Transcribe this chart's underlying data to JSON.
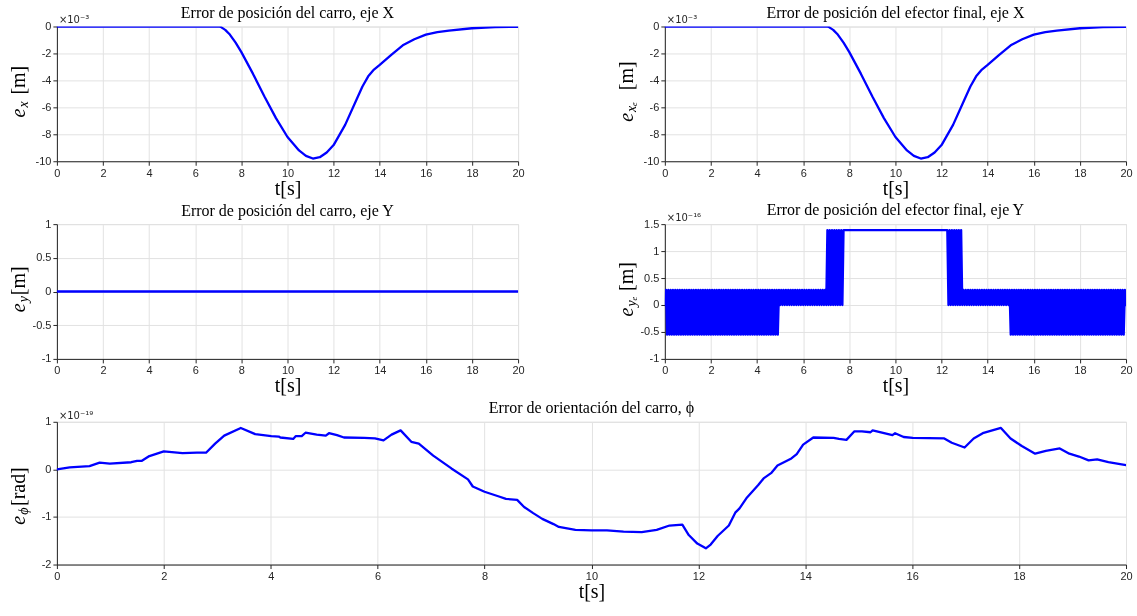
{
  "chart_data": [
    {
      "type": "line",
      "title": "Error de posición del carro, eje X",
      "xlabel": "t[s]",
      "ylabel": "e$_{x}$ [m]",
      "xlim": [
        0,
        20
      ],
      "ylim": [
        -10,
        0
      ],
      "xticks": [
        0,
        2,
        4,
        6,
        8,
        10,
        12,
        14,
        16,
        18,
        20
      ],
      "yticks": [
        -10,
        -8,
        -6,
        -4,
        -2,
        0
      ],
      "grid": true,
      "annotations": [
        "×10⁻³"
      ],
      "series": [
        {
          "color": "#0000ff",
          "x": [
            0,
            7,
            7.1,
            7.3,
            7.5,
            7.75,
            8,
            8.5,
            9,
            9.5,
            10,
            10.5,
            10.8,
            11.1,
            11.4,
            11.7,
            12,
            12.5,
            13,
            13.25,
            13.5,
            13.75,
            14,
            14.5,
            15,
            15.5,
            16,
            16.5,
            17,
            18,
            19,
            20
          ],
          "values": [
            0,
            0,
            -0.03,
            -0.25,
            -0.6,
            -1.2,
            -1.9,
            -3.5,
            -5.2,
            -6.8,
            -8.2,
            -9.2,
            -9.6,
            -9.8,
            -9.7,
            -9.35,
            -8.8,
            -7.3,
            -5.4,
            -4.45,
            -3.7,
            -3.2,
            -2.85,
            -2.1,
            -1.4,
            -0.95,
            -0.6,
            -0.42,
            -0.3,
            -0.13,
            -0.05,
            -0.02
          ]
        }
      ]
    },
    {
      "type": "line",
      "title": "Error de posición del efector final, eje X",
      "xlabel": "t[s]",
      "ylabel": "e$_{xₑ}$ [m]",
      "xlim": [
        0,
        20
      ],
      "ylim": [
        -10,
        0
      ],
      "xticks": [
        0,
        2,
        4,
        6,
        8,
        10,
        12,
        14,
        16,
        18,
        20
      ],
      "yticks": [
        -10,
        -8,
        -6,
        -4,
        -2,
        0
      ],
      "grid": true,
      "annotations": [
        "×10⁻³"
      ],
      "series": [
        {
          "color": "#0000ff",
          "x": [
            0,
            7,
            7.1,
            7.3,
            7.5,
            7.75,
            8,
            8.5,
            9,
            9.5,
            10,
            10.5,
            10.8,
            11.1,
            11.4,
            11.7,
            12,
            12.5,
            13,
            13.25,
            13.5,
            13.75,
            14,
            14.5,
            15,
            15.5,
            16,
            16.5,
            17,
            18,
            19,
            20
          ],
          "values": [
            0,
            0,
            -0.03,
            -0.25,
            -0.6,
            -1.2,
            -1.9,
            -3.5,
            -5.2,
            -6.8,
            -8.2,
            -9.2,
            -9.6,
            -9.8,
            -9.7,
            -9.35,
            -8.8,
            -7.3,
            -5.4,
            -4.45,
            -3.7,
            -3.2,
            -2.85,
            -2.1,
            -1.4,
            -0.95,
            -0.6,
            -0.42,
            -0.3,
            -0.13,
            -0.05,
            -0.02
          ]
        }
      ]
    },
    {
      "type": "line",
      "title": "Error de posición del carro, eje Y",
      "xlabel": "t[s]",
      "ylabel": "e$_{y}$[m]",
      "xlim": [
        0,
        20
      ],
      "ylim": [
        -1,
        1
      ],
      "xticks": [
        0,
        2,
        4,
        6,
        8,
        10,
        12,
        14,
        16,
        18,
        20
      ],
      "yticks": [
        -1,
        -0.5,
        0,
        0.5,
        1
      ],
      "grid": true,
      "series": [
        {
          "color": "#0000ff",
          "x": [
            0,
            20
          ],
          "values": [
            0,
            0
          ]
        }
      ]
    },
    {
      "type": "line",
      "title": "Error de posición del efector final, eje Y",
      "xlabel": "t[s]",
      "ylabel": "e$_{yₑ}$[m]",
      "xlim": [
        0,
        20
      ],
      "ylim": [
        -1,
        1.5
      ],
      "xticks": [
        0,
        2,
        4,
        6,
        8,
        10,
        12,
        14,
        16,
        18,
        20
      ],
      "yticks": [
        -1,
        -0.5,
        0,
        0.5,
        1,
        1.5
      ],
      "grid": true,
      "annotations": [
        "×10⁻¹⁶"
      ],
      "series": [
        {
          "color": "#0000ff",
          "x": [
            0,
            0.05,
            0.1,
            0.15,
            0.2,
            0.25,
            0.3,
            0.35,
            0.4,
            0.45,
            0.5,
            0.55,
            0.6,
            0.65,
            0.7,
            0.75,
            0.8,
            0.85,
            0.9,
            0.95,
            1,
            1.05,
            1.1,
            1.15,
            1.2,
            1.25,
            1.3,
            1.35,
            1.4,
            1.45,
            1.5,
            1.55,
            1.6,
            1.65,
            1.7,
            1.75,
            1.8,
            1.85,
            1.9,
            1.95,
            2,
            2.05,
            2.1,
            2.15,
            2.2,
            2.25,
            2.3,
            2.35,
            2.4,
            2.45,
            2.5,
            2.55,
            2.6,
            2.65,
            2.7,
            2.75,
            2.8,
            2.85,
            2.9,
            2.95,
            3,
            3.05,
            3.1,
            3.15,
            3.2,
            3.25,
            3.3,
            3.35,
            3.4,
            3.45,
            3.5,
            3.55,
            3.6,
            3.65,
            3.7,
            3.75,
            3.8,
            3.85,
            3.9,
            3.95,
            4,
            4.05,
            4.1,
            4.15,
            4.2,
            4.25,
            4.3,
            4.35,
            4.4,
            4.45,
            4.5,
            4.55,
            4.6,
            4.65,
            4.7,
            4.75,
            4.8,
            4.85,
            4.9,
            4.95,
            5,
            5.05,
            5.1,
            5.15,
            5.2,
            5.25,
            5.3,
            5.35,
            5.4,
            5.45,
            5.5,
            5.55,
            5.6,
            5.65,
            5.7,
            5.75,
            5.8,
            5.85,
            5.9,
            5.95,
            6,
            6.05,
            6.1,
            6.15,
            6.2,
            6.25,
            6.3,
            6.35,
            6.4,
            6.45,
            6.5,
            6.55,
            6.6,
            6.65,
            6.7,
            6.75,
            6.8,
            6.85,
            6.9,
            6.95,
            7,
            7.05,
            7.1,
            7.15,
            7.2,
            7.25,
            7.3,
            7.35,
            7.4,
            7.45,
            7.5,
            7.55,
            7.6,
            7.65,
            7.7,
            7.75,
            12.25,
            12.3,
            12.35,
            12.4,
            12.45,
            12.5,
            12.55,
            12.6,
            12.65,
            12.7,
            12.75,
            12.8,
            12.85,
            12.9,
            12.95,
            13,
            13.05,
            13.1,
            13.15,
            13.2,
            13.25,
            13.3,
            13.35,
            13.4,
            13.45,
            13.5,
            13.55,
            13.6,
            13.65,
            13.7,
            13.75,
            13.8,
            13.85,
            13.9,
            13.95,
            14,
            14.05,
            14.1,
            14.15,
            14.2,
            14.25,
            14.3,
            14.35,
            14.4,
            14.45,
            14.5,
            14.55,
            14.6,
            14.65,
            14.7,
            14.75,
            14.8,
            14.85,
            14.9,
            14.95,
            15,
            15.05,
            15.1,
            15.15,
            15.2,
            15.25,
            15.3,
            15.35,
            15.4,
            15.45,
            15.5,
            15.55,
            15.6,
            15.65,
            15.7,
            15.75,
            15.8,
            15.85,
            15.9,
            15.95,
            16,
            16.05,
            16.1,
            16.15,
            16.2,
            16.25,
            16.3,
            16.35,
            16.4,
            16.45,
            16.5,
            16.55,
            16.6,
            16.65,
            16.7,
            16.75,
            16.8,
            16.85,
            16.9,
            16.95,
            17,
            17.05,
            17.1,
            17.15,
            17.2,
            17.25,
            17.3,
            17.35,
            17.4,
            17.45,
            17.5,
            17.55,
            17.6,
            17.65,
            17.7,
            17.75,
            17.8,
            17.85,
            17.9,
            17.95,
            18,
            18.05,
            18.1,
            18.15,
            18.2,
            18.25,
            18.3,
            18.35,
            18.4,
            18.45,
            18.5,
            18.55,
            18.6,
            18.65,
            18.7,
            18.75,
            18.8,
            18.85,
            18.9,
            18.95,
            19,
            19.05,
            19.1,
            19.15,
            19.2,
            19.25,
            19.3,
            19.35,
            19.4,
            19.45,
            19.5,
            19.55,
            19.6,
            19.65,
            19.7,
            19.75,
            19.8,
            19.85,
            19.9,
            19.95,
            20
          ],
          "values": [
            0,
            0.28,
            -0.55,
            0.28,
            -0.55,
            0.28,
            -0.55,
            0.28,
            -0.55,
            0.28,
            -0.55,
            0.28,
            -0.55,
            0.28,
            -0.55,
            0.28,
            -0.55,
            0.28,
            -0.55,
            0.28,
            -0.55,
            0.28,
            -0.55,
            0.28,
            -0.55,
            0.28,
            -0.55,
            0.28,
            -0.55,
            0.28,
            -0.55,
            0.28,
            -0.55,
            0.28,
            -0.55,
            0.28,
            -0.55,
            0.28,
            -0.55,
            0.28,
            -0.55,
            0.28,
            -0.55,
            0.28,
            -0.55,
            0.28,
            -0.55,
            0.28,
            -0.55,
            0.28,
            -0.55,
            0.28,
            -0.55,
            0.28,
            -0.55,
            0.28,
            -0.55,
            0.28,
            -0.55,
            0.28,
            -0.55,
            0.28,
            -0.55,
            0.28,
            -0.55,
            0.28,
            -0.55,
            0.28,
            -0.55,
            0.28,
            -0.55,
            0.28,
            -0.55,
            0.28,
            -0.55,
            0.28,
            -0.55,
            0.28,
            -0.55,
            0.28,
            -0.55,
            0.28,
            -0.55,
            0.28,
            -0.55,
            0.28,
            -0.55,
            0.28,
            -0.55,
            0.28,
            -0.55,
            0.28,
            -0.55,
            0.28,
            -0.55,
            0.28,
            -0.55,
            0.28,
            -0.55,
            0.28,
            0,
            0.28,
            0,
            0.28,
            0,
            0.28,
            0,
            0.28,
            0,
            0.28,
            0,
            0.28,
            0,
            0.28,
            0,
            0.28,
            0,
            0.28,
            0,
            0.28,
            0,
            0.28,
            0,
            0.28,
            0,
            0.28,
            0,
            0.28,
            0,
            0.28,
            0,
            0.28,
            0,
            0.28,
            0,
            0.28,
            0,
            0.28,
            0,
            0.28,
            0,
            1.39,
            0,
            1.39,
            0,
            1.39,
            0,
            1.39,
            0,
            1.39,
            0,
            1.39,
            0,
            1.39,
            0,
            1.39,
            1.39,
            0,
            1.39,
            0,
            1.39,
            0,
            1.39,
            0,
            1.39,
            0,
            1.39,
            0,
            1.39,
            0,
            0.28,
            0,
            0.28,
            0,
            0.28,
            0,
            0.28,
            0,
            0.28,
            0,
            0.28,
            0,
            0.28,
            0,
            0.28,
            0,
            0.28,
            0,
            0.28,
            0,
            0.28,
            0,
            0.28,
            0,
            0.28,
            0,
            0.28,
            0,
            0.28,
            0,
            0.28,
            0,
            0.28,
            0,
            0.28,
            0,
            0.28,
            0,
            0.28,
            0,
            0.28,
            -0.55,
            0.28,
            -0.55,
            0.28,
            -0.55,
            0.28,
            -0.55,
            0.28,
            -0.55,
            0.28,
            -0.55,
            0.28,
            -0.55,
            0.28,
            -0.55,
            0.28,
            -0.55,
            0.28,
            -0.55,
            0.28,
            -0.55,
            0.28,
            -0.55,
            0.28,
            -0.55,
            0.28,
            -0.55,
            0.28,
            -0.55,
            0.28,
            -0.55,
            0.28,
            -0.55,
            0.28,
            -0.55,
            0.28,
            -0.55,
            0.28,
            -0.55,
            0.28,
            -0.55,
            0.28,
            -0.55,
            0.28,
            -0.55,
            0.28,
            -0.55,
            0.28,
            -0.55,
            0.28,
            -0.55,
            0.28,
            -0.55,
            0.28,
            -0.55,
            0.28,
            -0.55,
            0.28,
            -0.55,
            0.28,
            -0.55,
            0.28,
            -0.55,
            0.28,
            -0.55,
            0.28,
            -0.55,
            0.28,
            -0.55,
            0.28,
            -0.55,
            0.28,
            -0.55,
            0.28,
            -0.55,
            0.28,
            -0.55,
            0.28,
            -0.55,
            0.28,
            -0.55,
            0.28,
            -0.55,
            0.28,
            -0.55,
            0.28,
            -0.55,
            0.28,
            -0.55,
            0.28,
            -0.55,
            0.28,
            -0.55,
            0.28,
            -0.55,
            0.28,
            -0.55,
            0.28,
            -0.55,
            0.28,
            0
          ]
        }
      ]
    },
    {
      "type": "line",
      "title": "Error de orientación del carro, ϕ",
      "xlabel": "t[s]",
      "ylabel": "e$_{ϕ}$[rad]",
      "xlim": [
        0,
        20
      ],
      "ylim": [
        -2,
        1
      ],
      "xticks": [
        0,
        2,
        4,
        6,
        8,
        10,
        12,
        14,
        16,
        18,
        20
      ],
      "yticks": [
        -2,
        -1,
        0,
        1
      ],
      "grid": true,
      "annotations": [
        "×10⁻¹⁹"
      ],
      "series": [
        {
          "color": "#0000ff",
          "x": [
            0,
            0.24,
            0.61,
            0.8,
            0.99,
            1.39,
            1.5,
            1.59,
            1.73,
            2,
            2.35,
            2.62,
            2.79,
            2.96,
            3.13,
            3.44,
            3.71,
            4.01,
            4.15,
            4.18,
            4.42,
            4.47,
            4.58,
            4.65,
            4.86,
            5.03,
            5.09,
            5.24,
            5.37,
            5.75,
            5.95,
            6.11,
            6.26,
            6.43,
            6.63,
            6.77,
            7.04,
            7.38,
            7.69,
            7.78,
            8,
            8.27,
            8.4,
            8.61,
            8.74,
            8.91,
            9.08,
            9.29,
            9.39,
            9.7,
            10,
            10.29,
            10.6,
            10.94,
            11.22,
            11.46,
            11.7,
            11.82,
            11.98,
            12.14,
            12.23,
            12.36,
            12.57,
            12.69,
            12.77,
            12.91,
            13.12,
            13.22,
            13.36,
            13.48,
            13.74,
            13.84,
            13.96,
            14.15,
            14.53,
            14.63,
            14.77,
            14.92,
            15.06,
            15.22,
            15.26,
            15.63,
            15.68,
            15.84,
            16.01,
            16.6,
            16.74,
            16.98,
            17.15,
            17.32,
            17.66,
            17.84,
            18.05,
            18.3,
            18.5,
            18.76,
            18.94,
            19.12,
            19.3,
            19.46,
            19.67,
            20
          ],
          "values": [
            0,
            0.04,
            0.07,
            0.14,
            0.12,
            0.15,
            0.18,
            0.18,
            0.28,
            0.38,
            0.34,
            0.35,
            0.35,
            0.54,
            0.71,
            0.87,
            0.74,
            0.7,
            0.69,
            0.67,
            0.64,
            0.7,
            0.7,
            0.77,
            0.73,
            0.71,
            0.76,
            0.72,
            0.67,
            0.66,
            0.65,
            0.61,
            0.73,
            0.82,
            0.58,
            0.54,
            0.29,
            0.02,
            -0.21,
            -0.36,
            -0.47,
            -0.57,
            -0.62,
            -0.64,
            -0.79,
            -0.92,
            -1.04,
            -1.15,
            -1.21,
            -1.27,
            -1.28,
            -1.28,
            -1.31,
            -1.32,
            -1.27,
            -1.18,
            -1.16,
            -1.38,
            -1.56,
            -1.66,
            -1.58,
            -1.4,
            -1.18,
            -0.91,
            -0.82,
            -0.59,
            -0.33,
            -0.19,
            -0.08,
            0.08,
            0.23,
            0.32,
            0.52,
            0.67,
            0.66,
            0.64,
            0.62,
            0.8,
            0.8,
            0.78,
            0.82,
            0.72,
            0.76,
            0.68,
            0.66,
            0.65,
            0.56,
            0.46,
            0.65,
            0.76,
            0.87,
            0.65,
            0.49,
            0.33,
            0.39,
            0.44,
            0.33,
            0.27,
            0.19,
            0.21,
            0.15,
            0.09
          ]
        }
      ]
    }
  ]
}
